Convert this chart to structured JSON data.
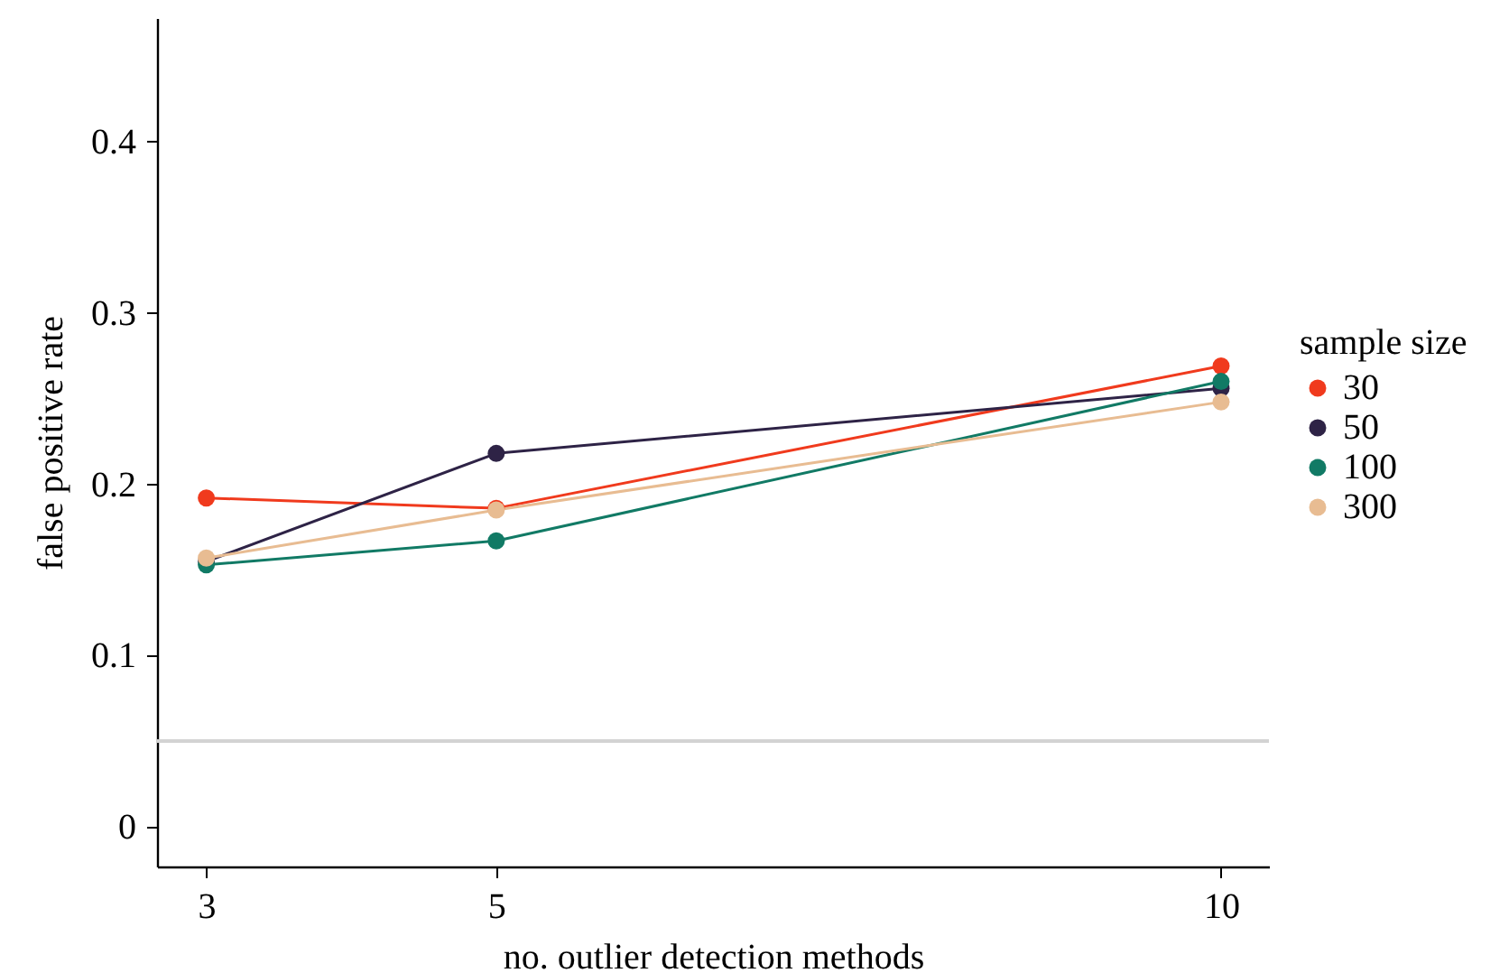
{
  "chart_data": {
    "type": "line",
    "xlabel": "no. outlier detection methods",
    "ylabel": "false positive rate",
    "legend_title": "sample size",
    "x": [
      3,
      5,
      10
    ],
    "series": [
      {
        "name": "30",
        "color": "#f03a1d",
        "values": [
          0.192,
          0.186,
          0.269
        ]
      },
      {
        "name": "50",
        "color": "#2e2346",
        "values": [
          0.155,
          0.218,
          0.256
        ]
      },
      {
        "name": "100",
        "color": "#117a65",
        "values": [
          0.153,
          0.167,
          0.26
        ]
      },
      {
        "name": "300",
        "color": "#e8bc92",
        "values": [
          0.157,
          0.185,
          0.248
        ]
      }
    ],
    "xlim": [
      2.66,
      10.33
    ],
    "xticks": [
      3,
      5,
      10
    ],
    "ylim": [
      -0.023,
      0.472
    ],
    "yticks": [
      0,
      0.1,
      0.2,
      0.3,
      0.4
    ],
    "ref_lines": [
      {
        "axis": "y",
        "value": 0.05,
        "color": "#d3d3d3"
      }
    ],
    "marker": "circle",
    "line_style": "solid",
    "grid": false,
    "legend": "right"
  }
}
